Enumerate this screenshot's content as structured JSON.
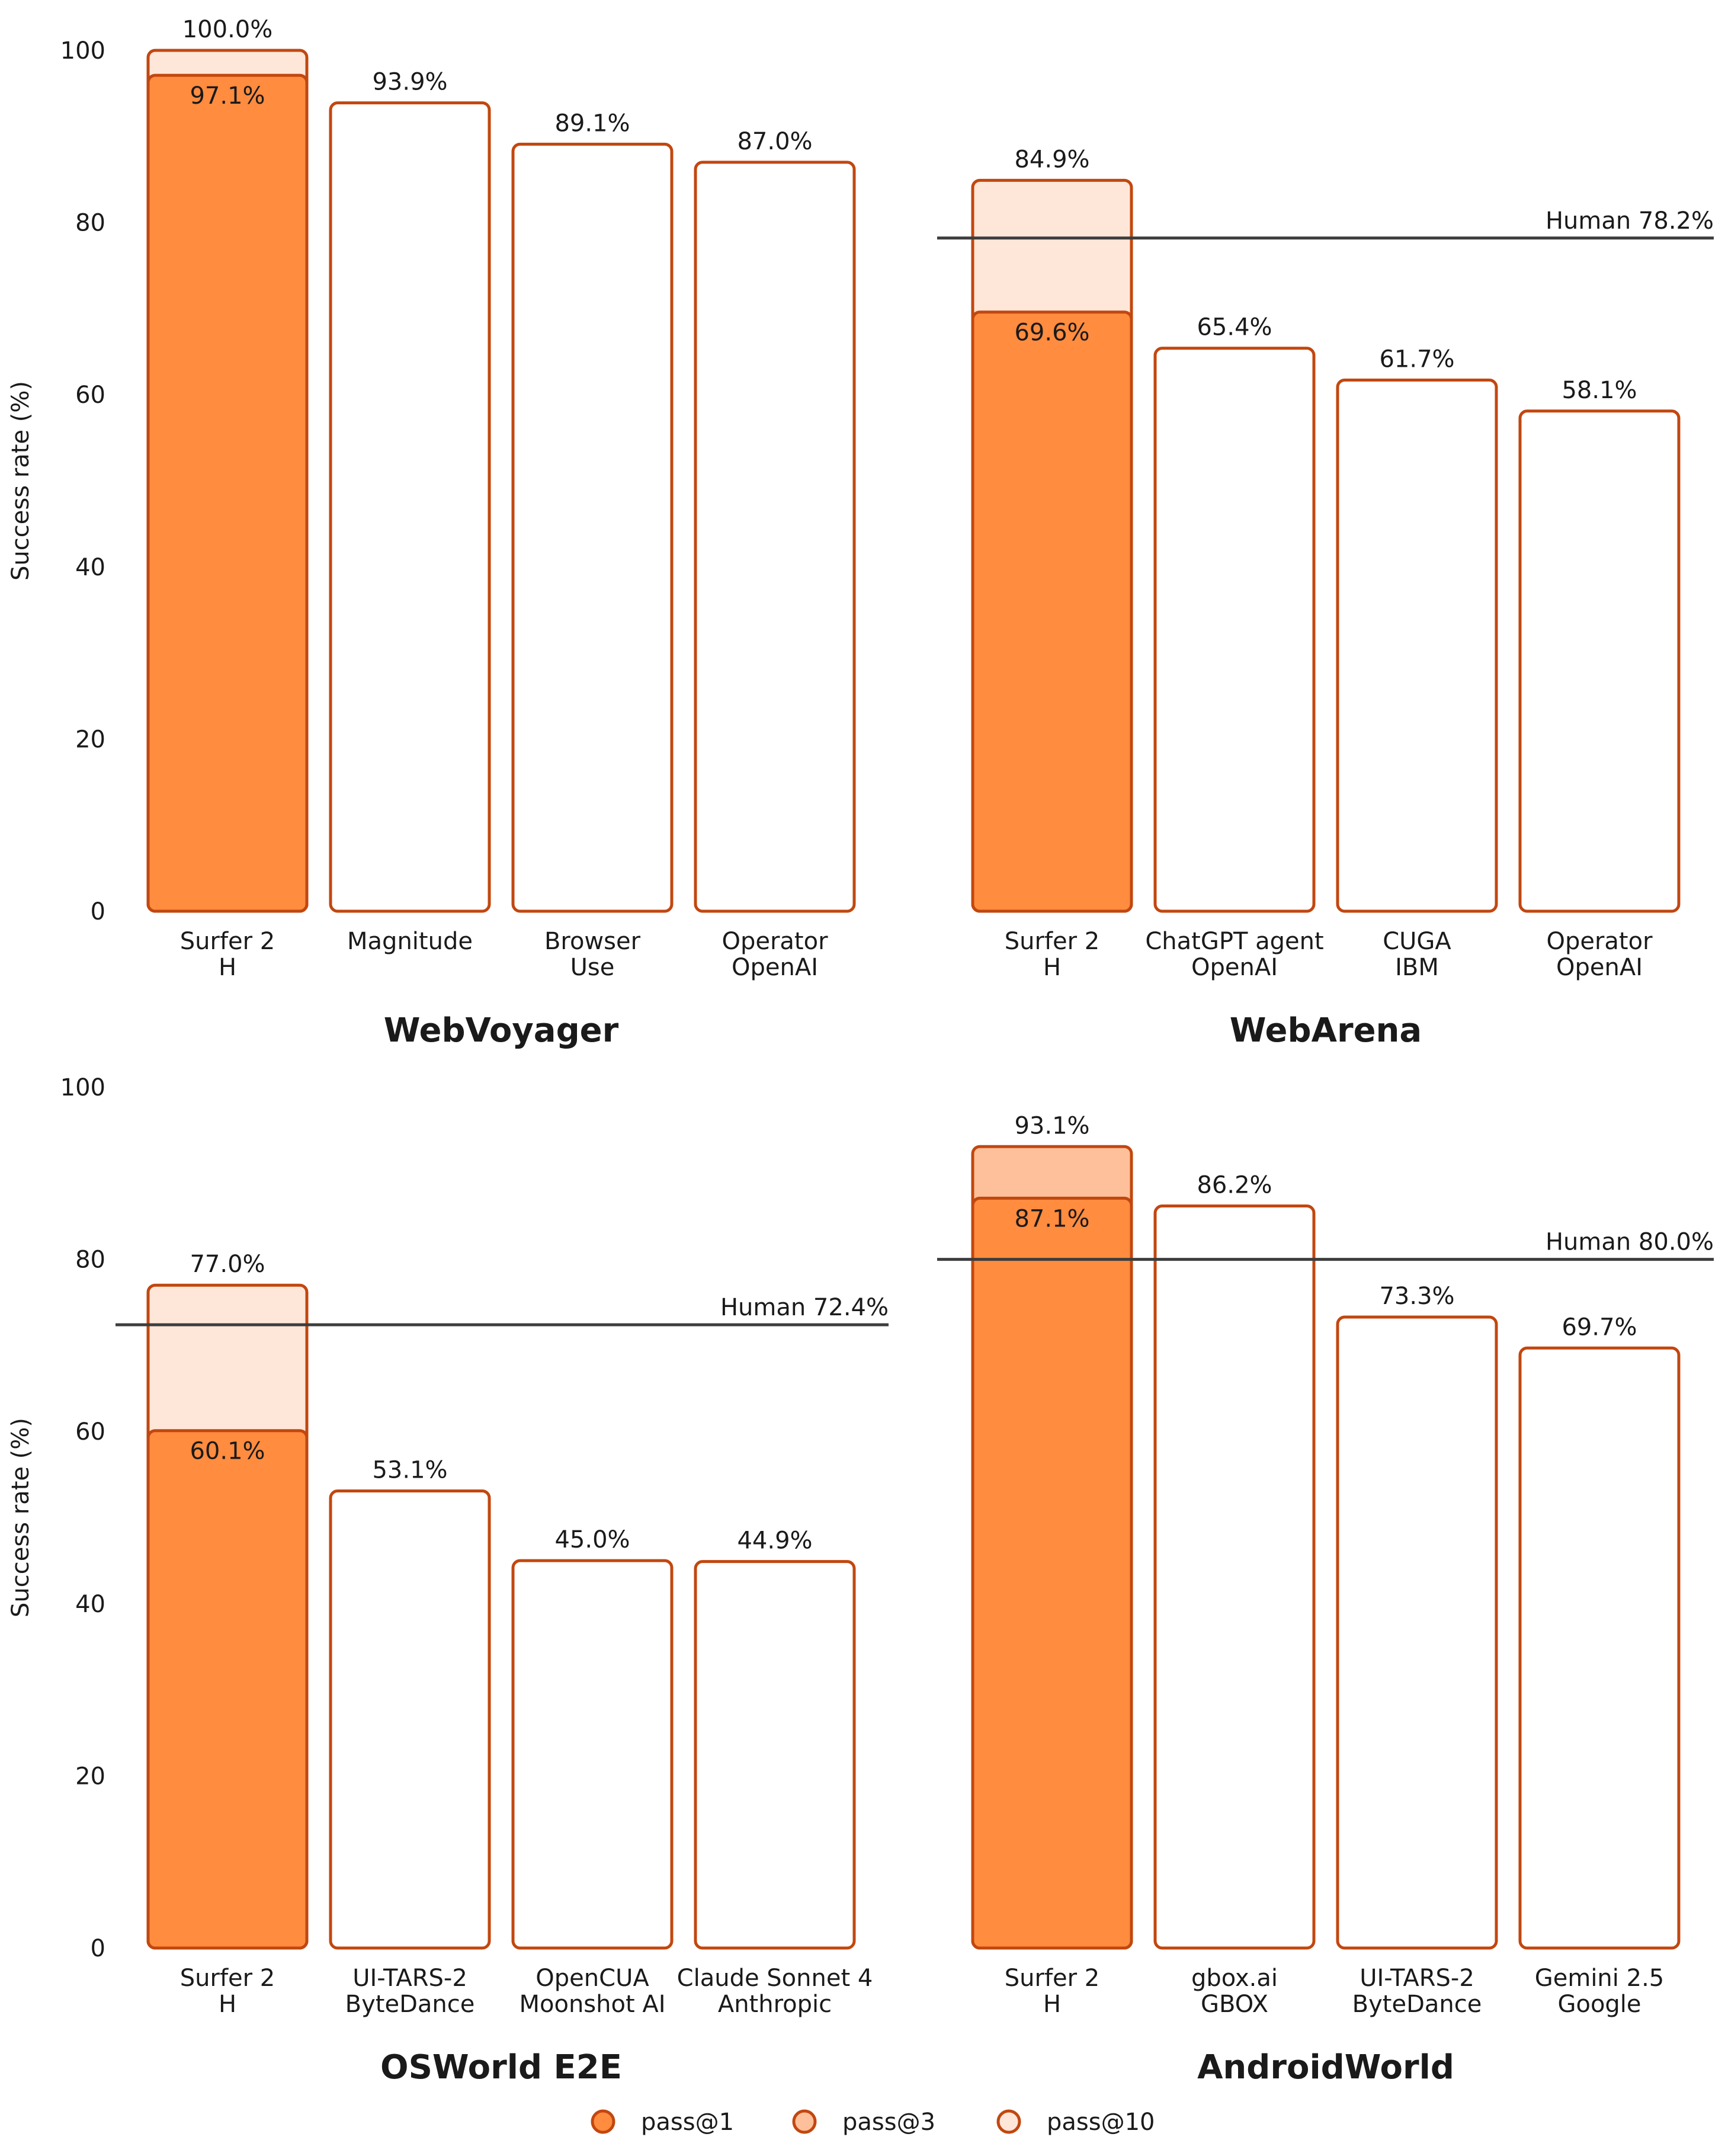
{
  "chart_data": [
    {
      "type": "bar",
      "title": "WebVoyager",
      "ylabel": "Success rate (%)",
      "ylim": [
        0,
        100
      ],
      "yticks": [
        "0",
        "20",
        "40",
        "60",
        "80",
        "100"
      ],
      "grid": false,
      "categories": [
        {
          "line1": "Surfer 2",
          "line2": "H"
        },
        {
          "line1": "Magnitude",
          "line2": ""
        },
        {
          "line1": "Browser",
          "line2": "Use"
        },
        {
          "line1": "Operator",
          "line2": "OpenAI"
        }
      ],
      "series": [
        {
          "name": "pass@1",
          "values": [
            97.1,
            93.9,
            89.1,
            87.0
          ],
          "labels": [
            "97.1%",
            "93.9%",
            "89.1%",
            "87.0%"
          ]
        },
        {
          "name": "pass@3",
          "values": [
            null,
            null,
            null,
            null
          ],
          "labels": [
            "",
            "",
            "",
            ""
          ]
        },
        {
          "name": "pass@10",
          "values": [
            100.0,
            null,
            null,
            null
          ],
          "labels": [
            "100.0%",
            "",
            "",
            ""
          ]
        }
      ],
      "human_baseline": null
    },
    {
      "type": "bar",
      "title": "WebArena",
      "ylabel": "",
      "ylim": [
        0,
        100
      ],
      "yticks": [],
      "grid": false,
      "categories": [
        {
          "line1": "Surfer 2",
          "line2": "H"
        },
        {
          "line1": "ChatGPT agent",
          "line2": "OpenAI"
        },
        {
          "line1": "CUGA",
          "line2": "IBM"
        },
        {
          "line1": "Operator",
          "line2": "OpenAI"
        }
      ],
      "series": [
        {
          "name": "pass@1",
          "values": [
            69.6,
            65.4,
            61.7,
            58.1
          ],
          "labels": [
            "69.6%",
            "65.4%",
            "61.7%",
            "58.1%"
          ]
        },
        {
          "name": "pass@3",
          "values": [
            null,
            null,
            null,
            null
          ],
          "labels": [
            "",
            "",
            "",
            ""
          ]
        },
        {
          "name": "pass@10",
          "values": [
            84.9,
            null,
            null,
            null
          ],
          "labels": [
            "84.9%",
            "",
            "",
            ""
          ]
        }
      ],
      "human_baseline": {
        "value": 78.2,
        "label": "Human 78.2%"
      }
    },
    {
      "type": "bar",
      "title": "OSWorld E2E",
      "ylabel": "Success rate (%)",
      "ylim": [
        0,
        100
      ],
      "yticks": [
        "0",
        "20",
        "40",
        "60",
        "80",
        "100"
      ],
      "grid": false,
      "categories": [
        {
          "line1": "Surfer 2",
          "line2": "H"
        },
        {
          "line1": "UI-TARS-2",
          "line2": "ByteDance"
        },
        {
          "line1": "OpenCUA",
          "line2": "Moonshot AI"
        },
        {
          "line1": "Claude Sonnet 4",
          "line2": "Anthropic"
        }
      ],
      "series": [
        {
          "name": "pass@1",
          "values": [
            60.1,
            53.1,
            45.0,
            44.9
          ],
          "labels": [
            "60.1%",
            "53.1%",
            "45.0%",
            "44.9%"
          ]
        },
        {
          "name": "pass@3",
          "values": [
            null,
            null,
            null,
            null
          ],
          "labels": [
            "",
            "",
            "",
            ""
          ]
        },
        {
          "name": "pass@10",
          "values": [
            77.0,
            null,
            null,
            null
          ],
          "labels": [
            "77.0%",
            "",
            "",
            ""
          ]
        }
      ],
      "human_baseline": {
        "value": 72.4,
        "label": "Human 72.4%"
      }
    },
    {
      "type": "bar",
      "title": "AndroidWorld",
      "ylabel": "",
      "ylim": [
        0,
        100
      ],
      "yticks": [],
      "grid": false,
      "categories": [
        {
          "line1": "Surfer 2",
          "line2": "H"
        },
        {
          "line1": "gbox.ai",
          "line2": "GBOX"
        },
        {
          "line1": "UI-TARS-2",
          "line2": "ByteDance"
        },
        {
          "line1": "Gemini 2.5",
          "line2": "Google"
        }
      ],
      "series": [
        {
          "name": "pass@1",
          "values": [
            87.1,
            86.2,
            73.3,
            69.7
          ],
          "labels": [
            "87.1%",
            "86.2%",
            "73.3%",
            "69.7%"
          ]
        },
        {
          "name": "pass@3",
          "values": [
            93.1,
            null,
            null,
            null
          ],
          "labels": [
            "93.1%",
            "",
            "",
            ""
          ]
        },
        {
          "name": "pass@10",
          "values": [
            null,
            null,
            null,
            null
          ],
          "labels": [
            "",
            "",
            "",
            ""
          ]
        }
      ],
      "human_baseline": {
        "value": 80.0,
        "label": "Human 80.0%"
      }
    }
  ],
  "legend": {
    "position": "bottom-center",
    "items": [
      {
        "label": "pass@1",
        "color": "#ff8c3f"
      },
      {
        "label": "pass@3",
        "color": "#fdc09a"
      },
      {
        "label": "pass@10",
        "color": "#fee7d8"
      }
    ]
  },
  "colors": {
    "pass1": "#ff8c3f",
    "pass3": "#fdc09a",
    "pass10": "#fee7d8",
    "outline": "#c2470f",
    "human_line": "#3d3d3d"
  }
}
